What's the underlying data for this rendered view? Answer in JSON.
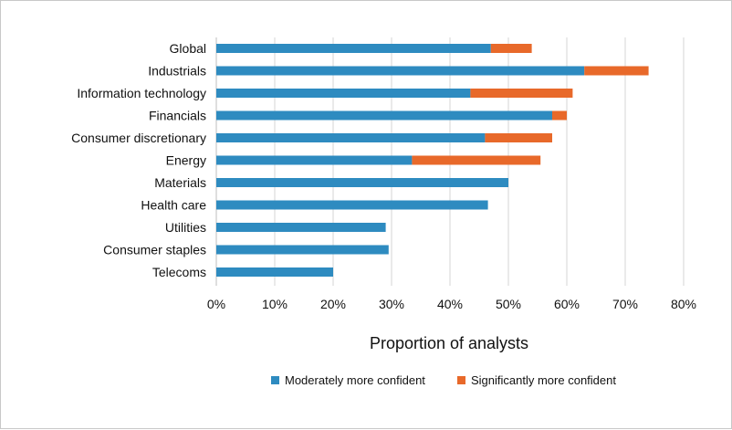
{
  "chart_data": {
    "type": "bar",
    "orientation": "horizontal",
    "stacked": true,
    "categories": [
      "Global",
      "Industrials",
      "Information technology",
      "Financials",
      "Consumer discretionary",
      "Energy",
      "Materials",
      "Health care",
      "Utilities",
      "Consumer staples",
      "Telecoms"
    ],
    "series": [
      {
        "name": "Moderately more confident",
        "color": "#2e8bc0",
        "values": [
          47,
          63,
          43.5,
          57.5,
          46,
          33.5,
          50,
          46.5,
          29,
          29.5,
          20
        ]
      },
      {
        "name": "Significantly more confident",
        "color": "#e8692a",
        "values": [
          7,
          11,
          17.5,
          2.5,
          11.5,
          22,
          0,
          0,
          0,
          0,
          0
        ]
      }
    ],
    "xlabel": "Proportion of analysts",
    "xlim": [
      0,
      80
    ],
    "xticks": [
      "0%",
      "10%",
      "20%",
      "30%",
      "40%",
      "50%",
      "60%",
      "70%",
      "80%"
    ],
    "grid": true,
    "legend_position": "bottom"
  }
}
